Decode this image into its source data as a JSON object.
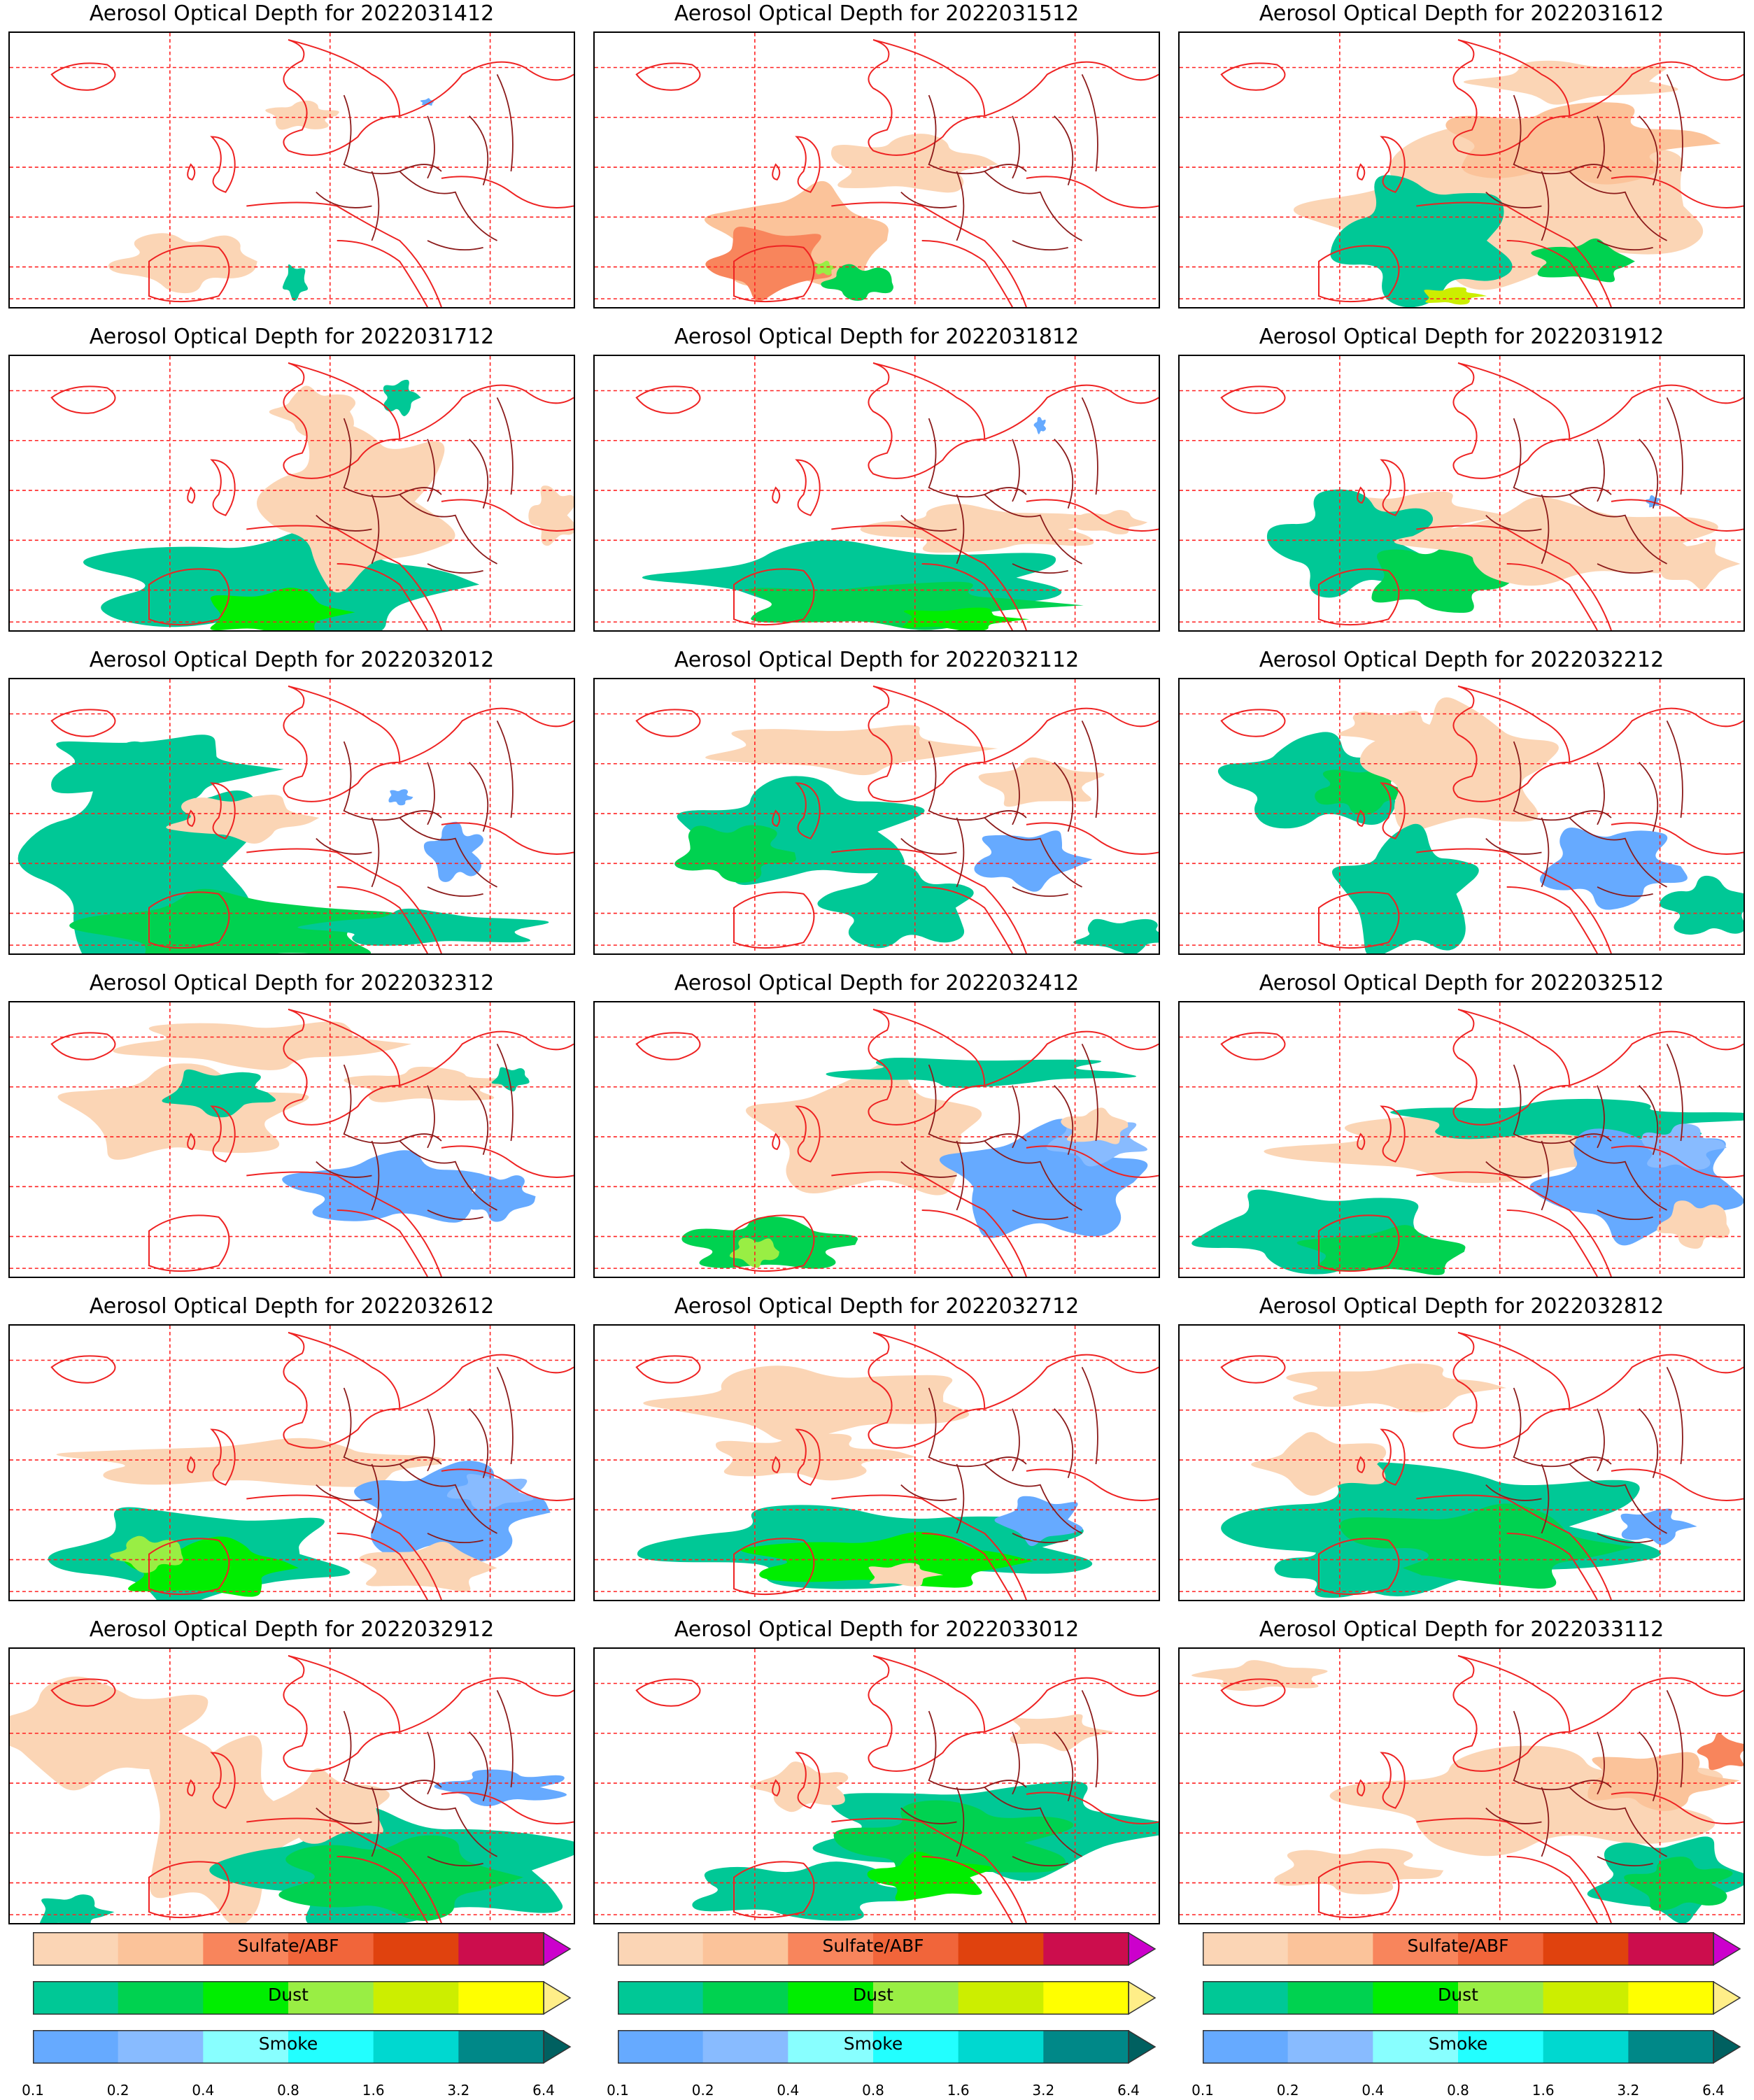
{
  "panels": [
    {
      "title": "Aerosol Optical Depth for 2022031412",
      "pattern": 0
    },
    {
      "title": "Aerosol Optical Depth for 2022031512",
      "pattern": 1
    },
    {
      "title": "Aerosol Optical Depth for 2022031612",
      "pattern": 2
    },
    {
      "title": "Aerosol Optical Depth for 2022031712",
      "pattern": 3
    },
    {
      "title": "Aerosol Optical Depth for 2022031812",
      "pattern": 4
    },
    {
      "title": "Aerosol Optical Depth for 2022031912",
      "pattern": 5
    },
    {
      "title": "Aerosol Optical Depth for 2022032012",
      "pattern": 6
    },
    {
      "title": "Aerosol Optical Depth for 2022032112",
      "pattern": 7
    },
    {
      "title": "Aerosol Optical Depth for 2022032212",
      "pattern": 8
    },
    {
      "title": "Aerosol Optical Depth for 2022032312",
      "pattern": 9
    },
    {
      "title": "Aerosol Optical Depth for 2022032412",
      "pattern": 10
    },
    {
      "title": "Aerosol Optical Depth for 2022032512",
      "pattern": 11
    },
    {
      "title": "Aerosol Optical Depth for 2022032612",
      "pattern": 12
    },
    {
      "title": "Aerosol Optical Depth for 2022032712",
      "pattern": 13
    },
    {
      "title": "Aerosol Optical Depth for 2022032812",
      "pattern": 14
    },
    {
      "title": "Aerosol Optical Depth for 2022032912",
      "pattern": 15
    },
    {
      "title": "Aerosol Optical Depth for 2022033012",
      "pattern": 16
    },
    {
      "title": "Aerosol Optical Depth for 2022033112",
      "pattern": 17
    }
  ],
  "colorbars": [
    {
      "label": "Sulfate/ABF",
      "colors": [
        "#fbd5b5",
        "#fbc39a",
        "#f8855c",
        "#f1653a",
        "#e0420e",
        "#cc0d4d"
      ],
      "extend_color": "#cc00cc"
    },
    {
      "label": "Dust",
      "colors": [
        "#00c896",
        "#00d250",
        "#00ee00",
        "#99ee44",
        "#ccee00",
        "#ffff00"
      ],
      "extend_color": "#ffee88"
    },
    {
      "label": "Smoke",
      "colors": [
        "#66aaff",
        "#88bbff",
        "#88ffff",
        "#22ffff",
        "#00d8d0",
        "#008888"
      ],
      "extend_color": "#006060"
    }
  ],
  "colorbar_ticks": [
    "0.1",
    "0.2",
    "0.4",
    "0.8",
    "1.6",
    "3.2",
    "6.4"
  ]
}
